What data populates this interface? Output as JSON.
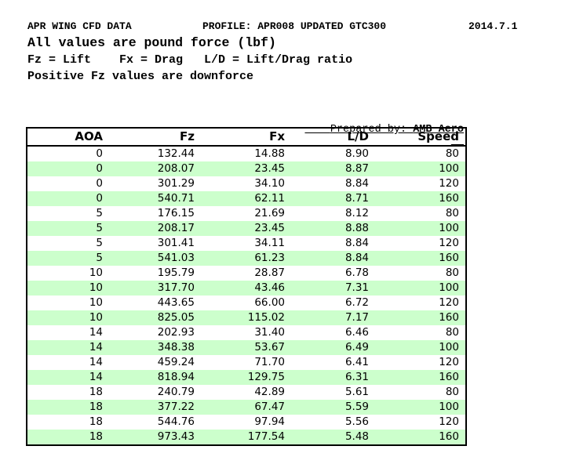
{
  "header": {
    "title_left": "APR WING CFD DATA",
    "title_profile": "PROFILE: APR008 UPDATED GTC300",
    "title_date": "2014.7.1",
    "subtitle": "All values are pound force (lbf)",
    "legend": "Fz = Lift    Fx = Drag   L/D = Lift/Drag ratio",
    "note": "Positive Fz values are downforce"
  },
  "prepared_by": {
    "label": "Prepared by: ",
    "value": "AMB Aero"
  },
  "table": {
    "stripe_color": "#ccffcc",
    "columns": [
      "AOA",
      "Fz",
      "Fx",
      "L/D",
      "Speed"
    ],
    "rows": [
      [
        "0",
        "132.44",
        "14.88",
        "8.90",
        "80"
      ],
      [
        "0",
        "208.07",
        "23.45",
        "8.87",
        "100"
      ],
      [
        "0",
        "301.29",
        "34.10",
        "8.84",
        "120"
      ],
      [
        "0",
        "540.71",
        "62.11",
        "8.71",
        "160"
      ],
      [
        "5",
        "176.15",
        "21.69",
        "8.12",
        "80"
      ],
      [
        "5",
        "208.17",
        "23.45",
        "8.88",
        "100"
      ],
      [
        "5",
        "301.41",
        "34.11",
        "8.84",
        "120"
      ],
      [
        "5",
        "541.03",
        "61.23",
        "8.84",
        "160"
      ],
      [
        "10",
        "195.79",
        "28.87",
        "6.78",
        "80"
      ],
      [
        "10",
        "317.70",
        "43.46",
        "7.31",
        "100"
      ],
      [
        "10",
        "443.65",
        "66.00",
        "6.72",
        "120"
      ],
      [
        "10",
        "825.05",
        "115.02",
        "7.17",
        "160"
      ],
      [
        "14",
        "202.93",
        "31.40",
        "6.46",
        "80"
      ],
      [
        "14",
        "348.38",
        "53.67",
        "6.49",
        "100"
      ],
      [
        "14",
        "459.24",
        "71.70",
        "6.41",
        "120"
      ],
      [
        "14",
        "818.94",
        "129.75",
        "6.31",
        "160"
      ],
      [
        "18",
        "240.79",
        "42.89",
        "5.61",
        "80"
      ],
      [
        "18",
        "377.22",
        "67.47",
        "5.59",
        "100"
      ],
      [
        "18",
        "544.76",
        "97.94",
        "5.56",
        "120"
      ],
      [
        "18",
        "973.43",
        "177.54",
        "5.48",
        "160"
      ]
    ]
  }
}
